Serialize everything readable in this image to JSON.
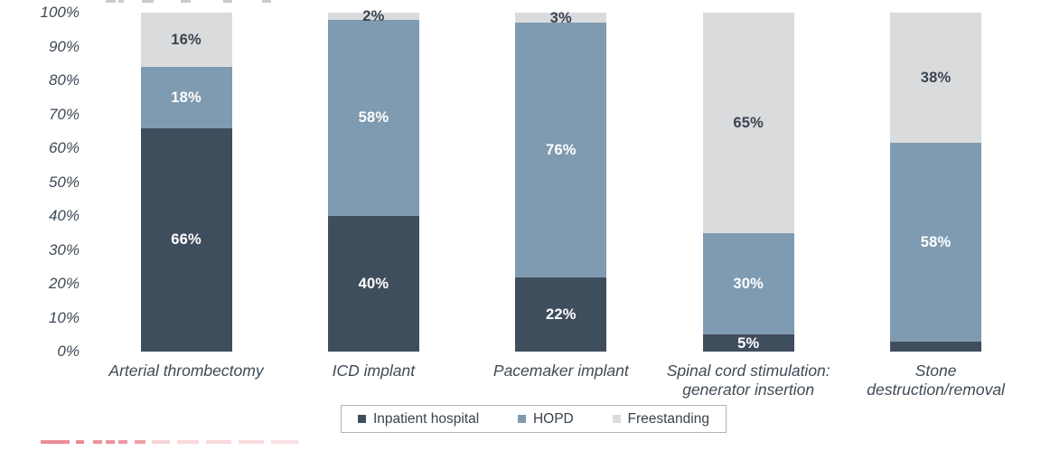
{
  "chart_data": {
    "type": "bar",
    "subtype": "stacked-100-percent",
    "title": "",
    "orientation": "vertical",
    "gridlines": false,
    "categories": [
      [
        "Arterial thrombectomy"
      ],
      [
        "ICD implant"
      ],
      [
        "Pacemaker implant"
      ],
      [
        "Spinal cord stimulation:",
        "generator insertion"
      ],
      [
        "Stone",
        "destruction/removal"
      ]
    ],
    "series": [
      {
        "name": "Inpatient hospital",
        "color": "#3F4E5D",
        "label_color": "#FFFFFF",
        "values": [
          66,
          40,
          22,
          5,
          3
        ],
        "labels": [
          "66%",
          "40%",
          "22%",
          "5%",
          "3%"
        ]
      },
      {
        "name": "HOPD",
        "color": "#7F9BB1",
        "label_color": "#FFFFFF",
        "values": [
          18,
          58,
          76,
          30,
          58
        ],
        "labels": [
          "18%",
          "58%",
          "76%",
          "30%",
          "58%"
        ]
      },
      {
        "name": "Freestanding",
        "color": "#D9DBDD",
        "label_color": "#3A4450",
        "values": [
          16,
          2,
          3,
          65,
          38
        ],
        "labels": [
          "16%",
          "2%",
          "3%",
          "65%",
          "38%"
        ]
      }
    ],
    "y_axis": {
      "min": 0,
      "max": 100,
      "tick_step": 10,
      "ticks": [
        "0%",
        "10%",
        "20%",
        "30%",
        "40%",
        "50%",
        "60%",
        "70%",
        "80%",
        "90%",
        "100%"
      ]
    },
    "legend": {
      "position": "bottom",
      "boxed": true,
      "items": [
        "Inpatient hospital",
        "HOPD",
        "Freestanding"
      ]
    }
  },
  "decorations": {
    "top_clipped_text": "illegible text cut off at top edge",
    "bottom_clipped_text": "illegible red text cut off at bottom edge",
    "top_mark_color": "#c7ccd1",
    "bottom_mark_color": "#E8808C"
  }
}
